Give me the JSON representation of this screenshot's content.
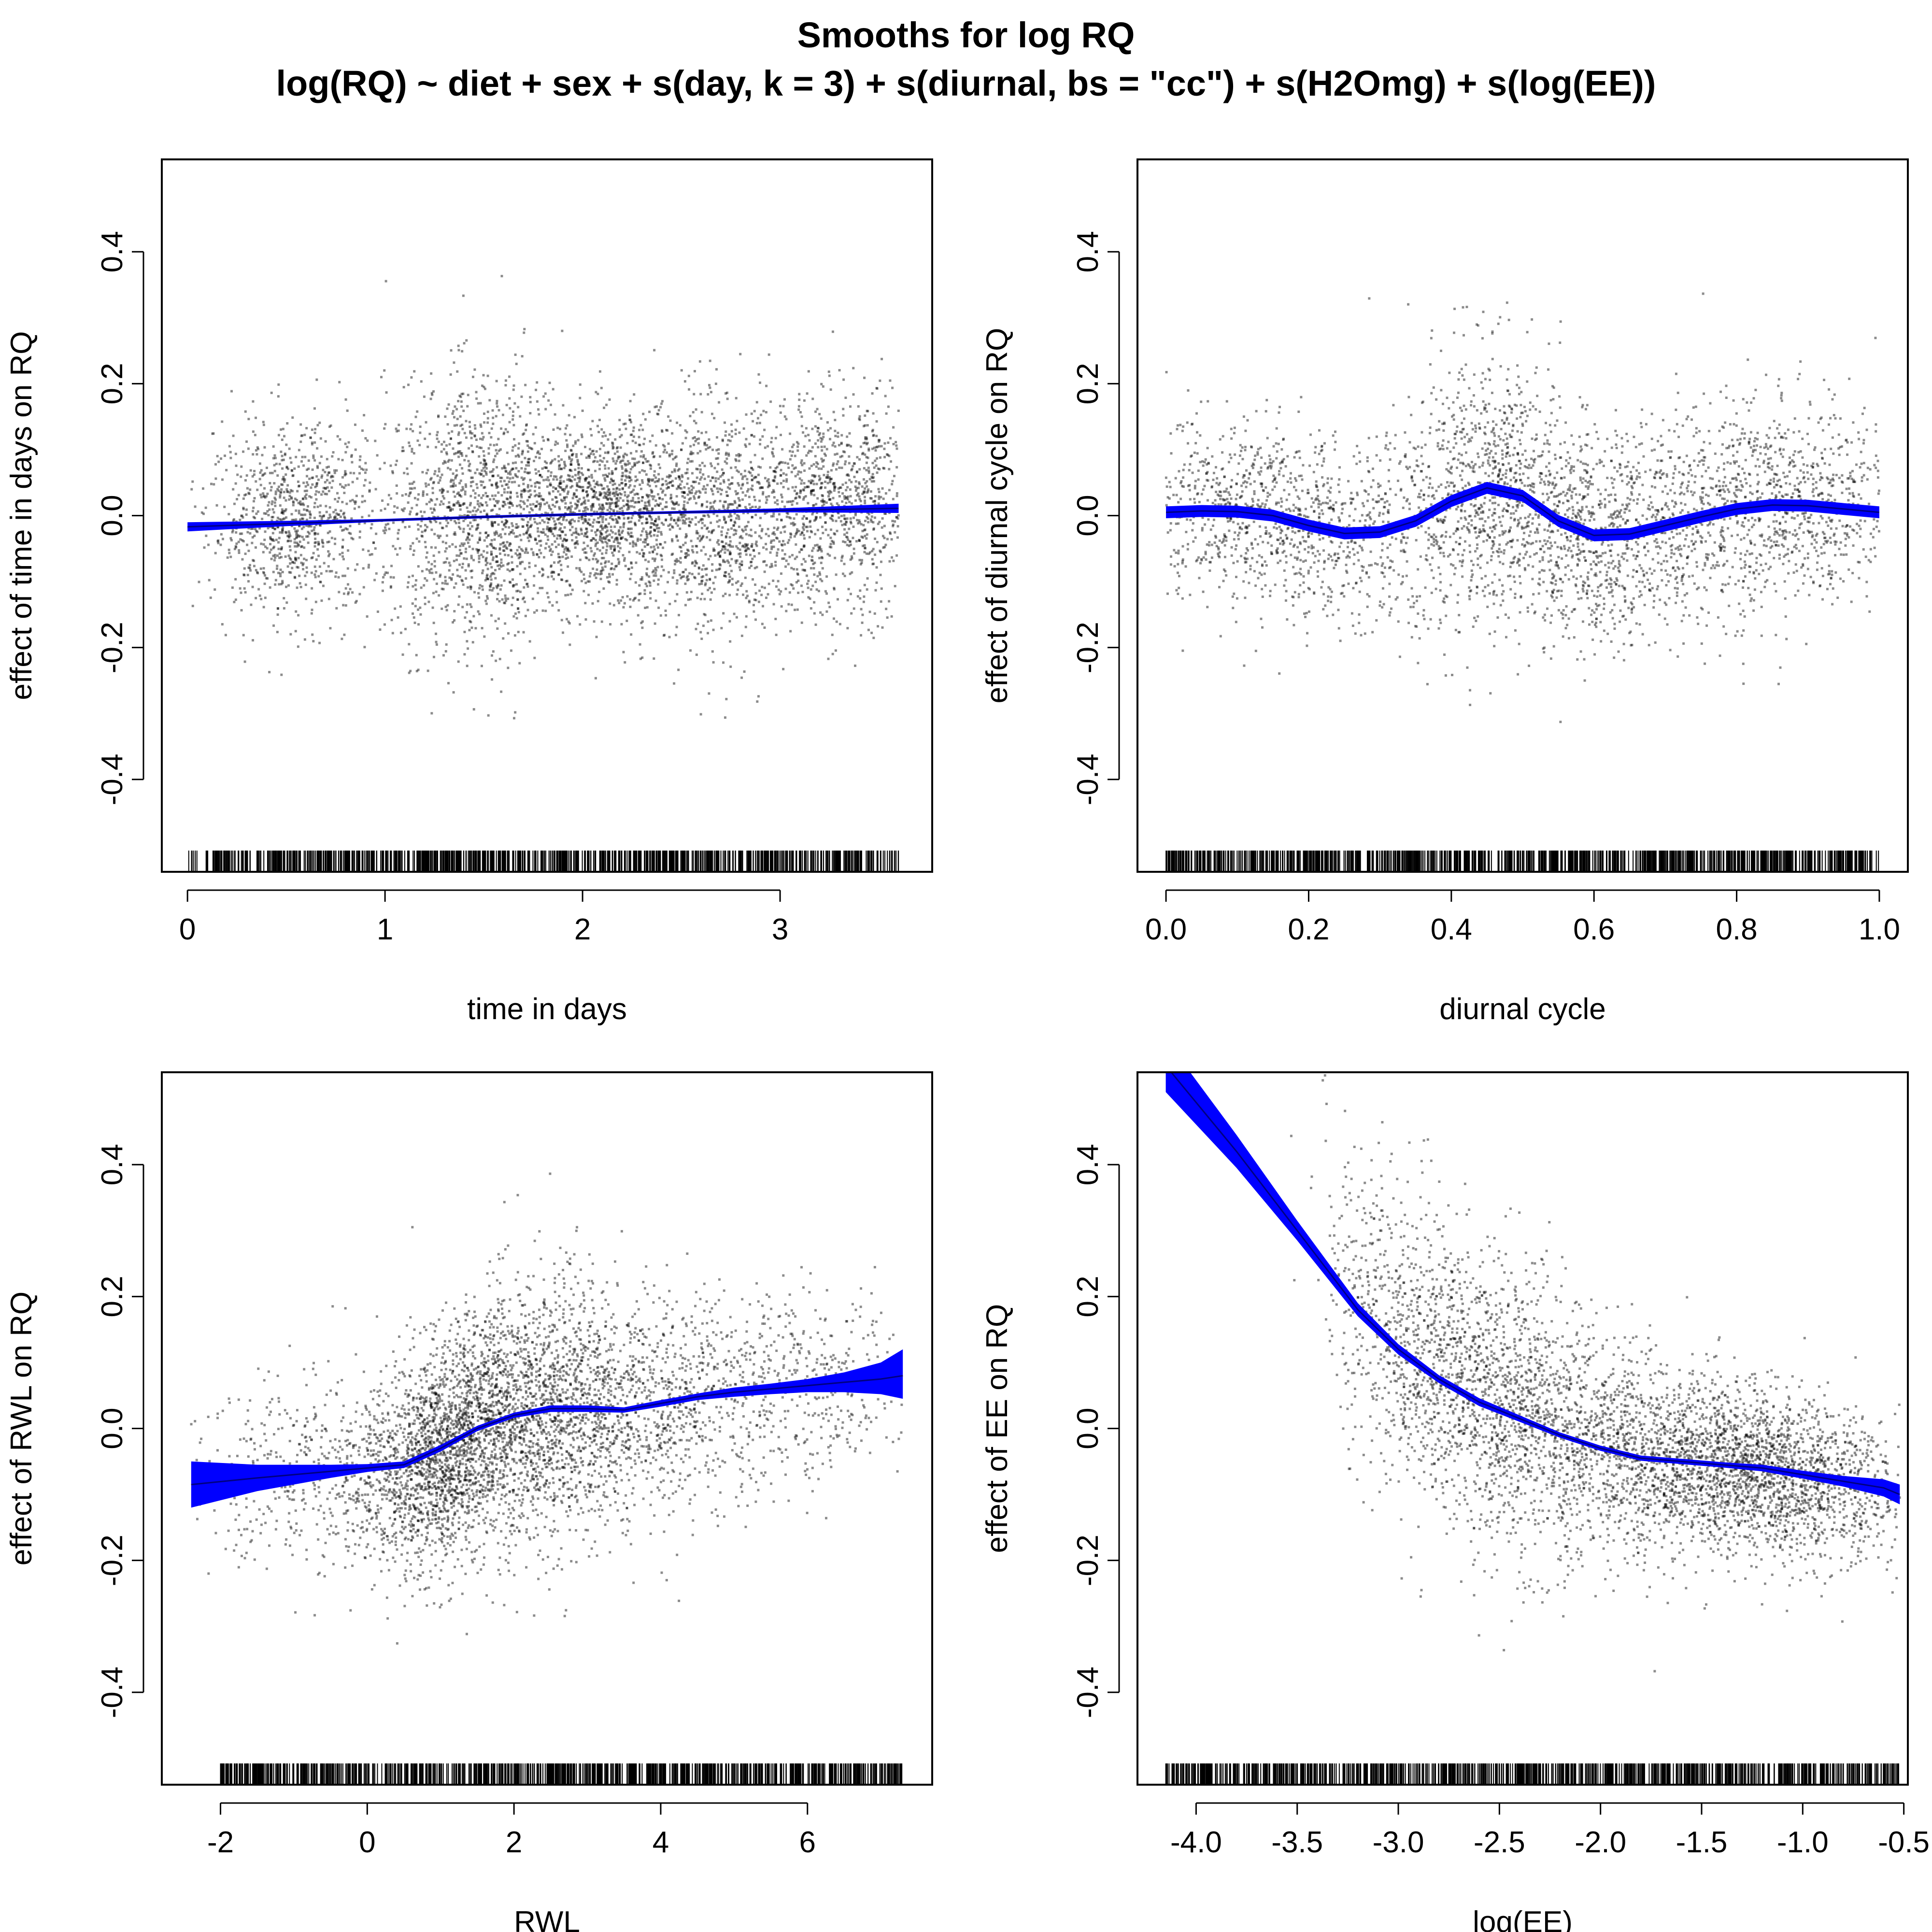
{
  "title": "Smooths for log RQ",
  "subtitle": "log(RQ) ~ diet + sex + s(day, k = 3) + s(diurnal, bs = \"cc\") + s(H2Omg) + s(log(EE))",
  "colors": {
    "band": "#0000ff",
    "curve": "#000080",
    "points": "#000000"
  },
  "chart_data": [
    {
      "type": "scatter",
      "xlabel": "time in days",
      "ylabel": "effect of time in days on RQ",
      "xlim": [
        -0.13,
        3.77
      ],
      "ylim": [
        -0.54,
        0.54
      ],
      "xticks": [
        0,
        1,
        2,
        3
      ],
      "xtick_labels": [
        "0",
        "1",
        "2",
        "3"
      ],
      "yticks": [
        -0.4,
        -0.2,
        0.0,
        0.2,
        0.4
      ],
      "ytick_labels": [
        "-0.4",
        "-0.2",
        "0.0",
        "0.2",
        "0.4"
      ],
      "grid": false,
      "smooth": {
        "x": [
          0.0,
          0.5,
          1.0,
          1.5,
          2.0,
          2.5,
          3.0,
          3.6
        ],
        "y": [
          -0.017,
          -0.012,
          -0.007,
          -0.002,
          0.002,
          0.005,
          0.008,
          0.011
        ],
        "lower": [
          -0.024,
          -0.016,
          -0.009,
          -0.004,
          0.0,
          0.003,
          0.005,
          0.004
        ],
        "upper": [
          -0.01,
          -0.008,
          -0.005,
          0.0,
          0.004,
          0.007,
          0.011,
          0.018
        ]
      },
      "rug": {
        "from": 0.0,
        "to": 3.6,
        "gap": [
          0.05,
          0.09
        ]
      },
      "residual_clusters": [
        {
          "x": 0.55,
          "y": -0.005,
          "sx": 0.22,
          "sy": 0.07,
          "n": 900
        },
        {
          "x": 1.5,
          "y": 0.01,
          "sx": 0.25,
          "sy": 0.1,
          "n": 1400
        },
        {
          "x": 2.1,
          "y": 0.02,
          "sx": 0.2,
          "sy": 0.06,
          "n": 1000
        },
        {
          "x": 2.7,
          "y": -0.01,
          "sx": 0.3,
          "sy": 0.09,
          "n": 1300
        },
        {
          "x": 3.35,
          "y": 0.02,
          "sx": 0.2,
          "sy": 0.08,
          "n": 800
        }
      ]
    },
    {
      "type": "scatter",
      "xlabel": "diurnal cycle",
      "ylabel": "effect of diurnal cycle on RQ",
      "xlim": [
        -0.04,
        1.04
      ],
      "ylim": [
        -0.54,
        0.54
      ],
      "xticks": [
        0.0,
        0.2,
        0.4,
        0.6,
        0.8,
        1.0
      ],
      "xtick_labels": [
        "0.0",
        "0.2",
        "0.4",
        "0.6",
        "0.8",
        "1.0"
      ],
      "yticks": [
        -0.4,
        -0.2,
        0.0,
        0.2,
        0.4
      ],
      "ytick_labels": [
        "-0.4",
        "-0.2",
        "0.0",
        "0.2",
        "0.4"
      ],
      "grid": false,
      "smooth": {
        "x": [
          0.0,
          0.05,
          0.1,
          0.15,
          0.2,
          0.25,
          0.3,
          0.35,
          0.4,
          0.45,
          0.5,
          0.55,
          0.6,
          0.65,
          0.7,
          0.75,
          0.8,
          0.85,
          0.9,
          0.95,
          1.0
        ],
        "y": [
          0.005,
          0.007,
          0.006,
          0.0,
          -0.015,
          -0.027,
          -0.025,
          -0.008,
          0.022,
          0.042,
          0.03,
          -0.008,
          -0.03,
          -0.028,
          -0.015,
          -0.002,
          0.01,
          0.016,
          0.015,
          0.01,
          0.005
        ],
        "se": 0.009
      },
      "rug": {
        "from": 0.0,
        "to": 1.0
      },
      "residual_clusters": [
        {
          "x": 0.15,
          "y": 0.0,
          "sx": 0.12,
          "sy": 0.07,
          "n": 1200
        },
        {
          "x": 0.45,
          "y": 0.05,
          "sx": 0.07,
          "sy": 0.11,
          "n": 900
        },
        {
          "x": 0.6,
          "y": -0.04,
          "sx": 0.08,
          "sy": 0.08,
          "n": 800
        },
        {
          "x": 0.85,
          "y": 0.015,
          "sx": 0.12,
          "sy": 0.08,
          "n": 1300
        }
      ]
    },
    {
      "type": "scatter",
      "xlabel": "RWL",
      "ylabel": "effect of RWL on RQ",
      "xlim": [
        -2.8,
        7.7
      ],
      "ylim": [
        -0.54,
        0.54
      ],
      "xticks": [
        -2,
        0,
        2,
        4,
        6
      ],
      "xtick_labels": [
        "-2",
        "0",
        "2",
        "4",
        "6"
      ],
      "yticks": [
        -0.4,
        -0.2,
        0.0,
        0.2,
        0.4
      ],
      "ytick_labels": [
        "-0.4",
        "-0.2",
        "0.0",
        "0.2",
        "0.4"
      ],
      "grid": false,
      "smooth": {
        "x": [
          -2.4,
          -1.5,
          -0.5,
          0.0,
          0.5,
          1.0,
          1.5,
          2.0,
          2.5,
          3.0,
          3.5,
          4.0,
          4.5,
          5.0,
          5.5,
          6.0,
          6.5,
          7.0,
          7.3
        ],
        "y": [
          -0.085,
          -0.075,
          -0.065,
          -0.06,
          -0.055,
          -0.03,
          0.0,
          0.02,
          0.03,
          0.03,
          0.028,
          0.038,
          0.048,
          0.055,
          0.06,
          0.065,
          0.07,
          0.075,
          0.08
        ],
        "lower": [
          -0.12,
          -0.095,
          -0.075,
          -0.066,
          -0.06,
          -0.035,
          -0.004,
          0.016,
          0.025,
          0.025,
          0.024,
          0.033,
          0.043,
          0.048,
          0.052,
          0.055,
          0.055,
          0.052,
          0.045
        ],
        "upper": [
          -0.05,
          -0.055,
          -0.055,
          -0.054,
          -0.05,
          -0.025,
          0.004,
          0.024,
          0.035,
          0.035,
          0.032,
          0.043,
          0.053,
          0.062,
          0.068,
          0.075,
          0.085,
          0.1,
          0.12
        ]
      },
      "rug": {
        "from": -2.0,
        "to": 7.3
      },
      "residual_clusters": [
        {
          "x": 1.0,
          "y": -0.05,
          "sx": 0.55,
          "sy": 0.08,
          "n": 1600
        },
        {
          "x": 2.2,
          "y": 0.02,
          "sx": 0.8,
          "sy": 0.1,
          "n": 1800
        },
        {
          "x": 4.0,
          "y": 0.04,
          "sx": 1.1,
          "sy": 0.08,
          "n": 1000
        },
        {
          "x": -0.8,
          "y": -0.07,
          "sx": 0.9,
          "sy": 0.07,
          "n": 500
        },
        {
          "x": 6.2,
          "y": 0.06,
          "sx": 0.8,
          "sy": 0.07,
          "n": 300
        }
      ]
    },
    {
      "type": "scatter",
      "xlabel": "log(EE)",
      "ylabel": "effect of EE on RQ",
      "xlim": [
        -4.29,
        -0.48
      ],
      "ylim": [
        -0.54,
        0.54
      ],
      "xticks": [
        -4.0,
        -3.5,
        -3.0,
        -2.5,
        -2.0,
        -1.5,
        -1.0,
        -0.5
      ],
      "xtick_labels": [
        "-4.0",
        "-3.5",
        "-3.0",
        "-2.5",
        "-2.0",
        "-1.5",
        "-1.0",
        "-0.5"
      ],
      "yticks": [
        -0.4,
        -0.2,
        0.0,
        0.2,
        0.4
      ],
      "ytick_labels": [
        "-0.4",
        "-0.2",
        "0.0",
        "0.2",
        "0.4"
      ],
      "grid": false,
      "smooth": {
        "x": [
          -4.15,
          -3.8,
          -3.5,
          -3.2,
          -3.0,
          -2.8,
          -2.6,
          -2.4,
          -2.2,
          -2.0,
          -1.8,
          -1.6,
          -1.4,
          -1.2,
          -1.0,
          -0.8,
          -0.6,
          -0.52
        ],
        "y": [
          0.55,
          0.42,
          0.3,
          0.18,
          0.12,
          0.075,
          0.04,
          0.015,
          -0.01,
          -0.03,
          -0.045,
          -0.05,
          -0.055,
          -0.06,
          -0.07,
          -0.08,
          -0.09,
          -0.1
        ],
        "lower": [
          0.51,
          0.395,
          0.285,
          0.17,
          0.112,
          0.069,
          0.034,
          0.01,
          -0.014,
          -0.034,
          -0.049,
          -0.054,
          -0.059,
          -0.065,
          -0.076,
          -0.088,
          -0.103,
          -0.115
        ],
        "upper": [
          0.59,
          0.445,
          0.315,
          0.19,
          0.128,
          0.081,
          0.046,
          0.02,
          -0.006,
          -0.026,
          -0.041,
          -0.046,
          -0.051,
          -0.055,
          -0.064,
          -0.072,
          -0.077,
          -0.085
        ]
      },
      "rug": {
        "from": -4.15,
        "to": -0.52
      },
      "residual_clusters": [
        {
          "x": -2.5,
          "y": 0.05,
          "sx": 0.3,
          "sy": 0.11,
          "n": 1500
        },
        {
          "x": -1.7,
          "y": -0.05,
          "sx": 0.35,
          "sy": 0.07,
          "n": 1500
        },
        {
          "x": -1.1,
          "y": -0.08,
          "sx": 0.3,
          "sy": 0.06,
          "n": 1500
        },
        {
          "x": -3.0,
          "y": 0.17,
          "sx": 0.18,
          "sy": 0.12,
          "n": 500
        }
      ]
    }
  ]
}
